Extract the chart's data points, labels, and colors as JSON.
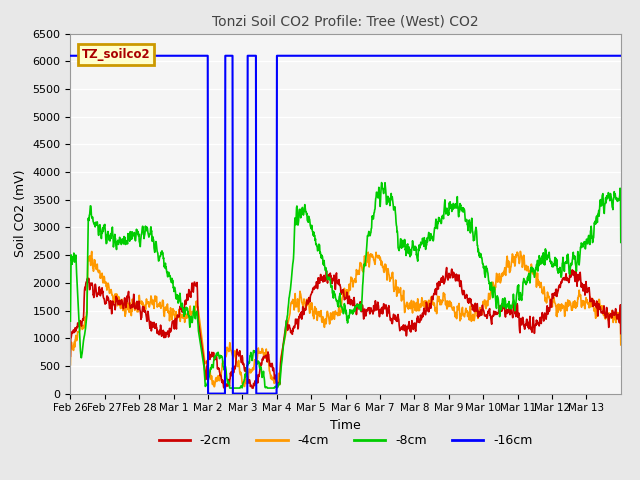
{
  "title": "Tonzi Soil CO2 Profile: Tree (West) CO2",
  "xlabel": "Time",
  "ylabel": "Soil CO2 (mV)",
  "ylim": [
    0,
    6500
  ],
  "yticks": [
    0,
    500,
    1000,
    1500,
    2000,
    2500,
    3000,
    3500,
    4000,
    4500,
    5000,
    5500,
    6000,
    6500
  ],
  "legend_label": "TZ_soilco2",
  "line_colors": {
    "-2cm": "#cc0000",
    "-4cm": "#ff9900",
    "-8cm": "#00cc00",
    "-16cm": "#0000ff"
  },
  "background_color": "#e8e8e8",
  "plot_bg_color": "#f5f5f5",
  "date_labels": [
    "Feb 26",
    "Feb 27",
    "Feb 28",
    "Mar 1",
    "Mar 2",
    "Mar 3",
    "Mar 4",
    "Mar 5",
    "Mar 6",
    "Mar 7",
    "Mar 8",
    "Mar 9",
    "Mar 10",
    "Mar 11",
    "Mar 12",
    "Mar 13"
  ]
}
